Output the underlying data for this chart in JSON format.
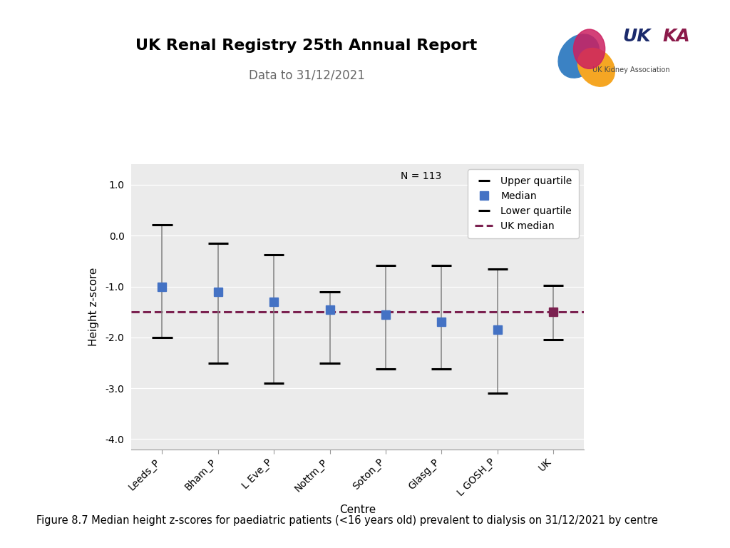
{
  "title": "UK Renal Registry 25th Annual Report",
  "subtitle": "Data to 31/12/2021",
  "xlabel": "Centre",
  "ylabel": "Height z-score",
  "ylim": [
    -4.2,
    1.4
  ],
  "yticks": [
    1.0,
    0.0,
    -1.0,
    -2.0,
    -3.0,
    -4.0
  ],
  "ytick_labels": [
    "1.0",
    "0.0",
    "-1.0",
    "-2.0",
    "-3.0",
    "-4.0"
  ],
  "n_label": "N = 113",
  "uk_median": -1.5,
  "centres": [
    "Leeds_P",
    "Bham_P",
    "L Eve_P",
    "Nottm_P",
    "Soton_P",
    "Glasg_P",
    "L GOSH_P",
    "UK"
  ],
  "medians": [
    -1.0,
    -1.1,
    -1.3,
    -1.45,
    -1.55,
    -1.7,
    -1.85,
    -1.5
  ],
  "uppers": [
    0.22,
    -0.15,
    -0.38,
    -1.1,
    -0.58,
    -0.58,
    -0.65,
    -0.98
  ],
  "lowers": [
    -2.0,
    -2.5,
    -2.9,
    -2.5,
    -2.62,
    -2.62,
    -3.1,
    -2.05
  ],
  "median_colors": [
    "#4472C4",
    "#4472C4",
    "#4472C4",
    "#4472C4",
    "#4472C4",
    "#4472C4",
    "#4472C4",
    "#7B2150"
  ],
  "line_color": "#808080",
  "uk_median_color": "#7B2150",
  "plot_bg_color": "#EBEBEB",
  "title_fontsize": 16,
  "subtitle_fontsize": 12,
  "label_fontsize": 11,
  "tick_fontsize": 10,
  "legend_fontsize": 10,
  "caption": "Figure 8.7 Median height z-scores for paediatric patients (<16 years old) prevalent to dialysis on 31/12/2021 by centre"
}
